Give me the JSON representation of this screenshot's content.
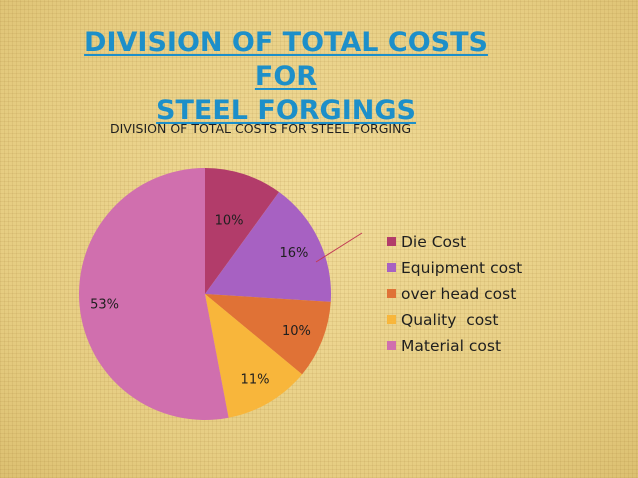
{
  "slide": {
    "title_line1": "DIVISION OF TOTAL COSTS FOR",
    "title_line2": "STEEL FORGINGS"
  },
  "chart_data": {
    "type": "pie",
    "title": "DIVISION OF TOTAL COSTS FOR STEEL FORGING",
    "slices": [
      {
        "name": "Die Cost",
        "value": 10,
        "label": "10%",
        "color": "#b23c6a"
      },
      {
        "name": "Equipment cost",
        "value": 16,
        "label": "16%",
        "color": "#a761c2"
      },
      {
        "name": "over head cost",
        "value": 10,
        "label": "10%",
        "color": "#e07236"
      },
      {
        "name": "Quality  cost",
        "value": 11,
        "label": "11%",
        "color": "#f8b63b"
      },
      {
        "name": "Material cost",
        "value": 53,
        "label": "53%",
        "color": "#d06fae"
      }
    ],
    "legend_position": "right",
    "start_angle": "12 o'clock",
    "direction": "clockwise"
  }
}
